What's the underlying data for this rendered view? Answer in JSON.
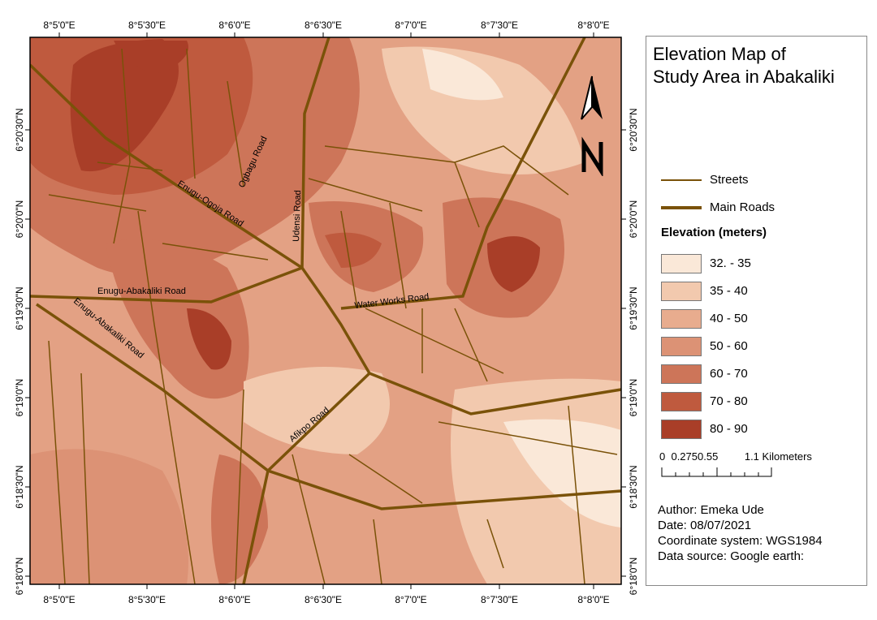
{
  "title": "Elevation Map of Study Area in Abakaliki",
  "title_lines": [
    "Elevation Map of",
    "Study Area in Abakaliki"
  ],
  "legend": {
    "streets": "Streets",
    "main_roads": "Main Roads",
    "elevation_title": "Elevation (meters)",
    "classes": [
      {
        "label": "32. - 35",
        "color": "#FAE8D8"
      },
      {
        "label": "35 - 40",
        "color": "#F2C9AE"
      },
      {
        "label": "40 - 50",
        "color": "#E8AC8E"
      },
      {
        "label": "50 - 60",
        "color": "#DC9275"
      },
      {
        "label": "60 - 70",
        "color": "#CD7559"
      },
      {
        "label": "70 - 80",
        "color": "#BF5A3E"
      },
      {
        "label": "80 - 90",
        "color": "#A93E28"
      }
    ],
    "road_color": "#7A5209"
  },
  "scale_bar": {
    "labels": [
      "0",
      "0.275",
      "0.55",
      "1.1 Kilometers"
    ]
  },
  "north_arrow": "N",
  "meta": {
    "author": "Author: Emeka Ude",
    "date": "Date: 08/07/2021",
    "crs": "Coordinate system: WGS1984",
    "source": "Data source: Google earth:"
  },
  "grid": {
    "lon": [
      "8°5'0\"E",
      "8°5'30\"E",
      "8°6'0\"E",
      "8°6'30\"E",
      "8°7'0\"E",
      "8°7'30\"E",
      "8°8'0\"E"
    ],
    "lat": [
      "6°20'30\"N",
      "6°20'0\"N",
      "6°19'30\"N",
      "6°19'0\"N",
      "6°18'30\"N",
      "6°18'0\"N"
    ]
  },
  "roads": {
    "enugu_ogoja": "Enugu-Ogoja Road",
    "ogbagu": "Ogbagu Road",
    "udensi": "Udensi Road",
    "enugu_abakaliki_1": "Enugu-Abakaliki Road",
    "enugu_abakaliki_2": "Enugu-Abakaliki Road",
    "water_works": "Water Works Road",
    "afikpo": "Afikpo Road"
  }
}
